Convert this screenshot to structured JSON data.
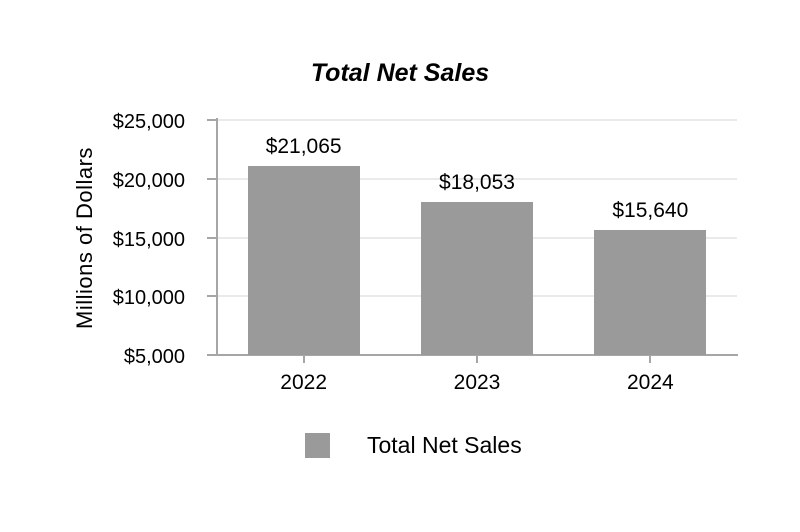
{
  "chart_data": {
    "type": "bar",
    "title": "Total Net Sales",
    "ylabel": "Millions of Dollars",
    "xlabel": "",
    "categories": [
      "2022",
      "2023",
      "2024"
    ],
    "values": [
      21065,
      18053,
      15640
    ],
    "data_labels": [
      "$21,065",
      "$18,053",
      "$15,640"
    ],
    "ylim": [
      5000,
      25000
    ],
    "yticks": [
      {
        "value": 25000,
        "label": "$25,000"
      },
      {
        "value": 20000,
        "label": "$20,000"
      },
      {
        "value": 15000,
        "label": "$15,000"
      },
      {
        "value": 10000,
        "label": "$10,000"
      },
      {
        "value": 5000,
        "label": "$5,000"
      }
    ],
    "grid": "horizontal",
    "legend": {
      "position": "bottom",
      "items": [
        {
          "label": "Total Net Sales",
          "color": "#9a9a9a"
        }
      ]
    },
    "colors": {
      "bar": "#9a9a9a",
      "axis": "#a6a6a6",
      "gridline": "#eaeaea",
      "text": "#000000",
      "background": "#ffffff"
    }
  }
}
